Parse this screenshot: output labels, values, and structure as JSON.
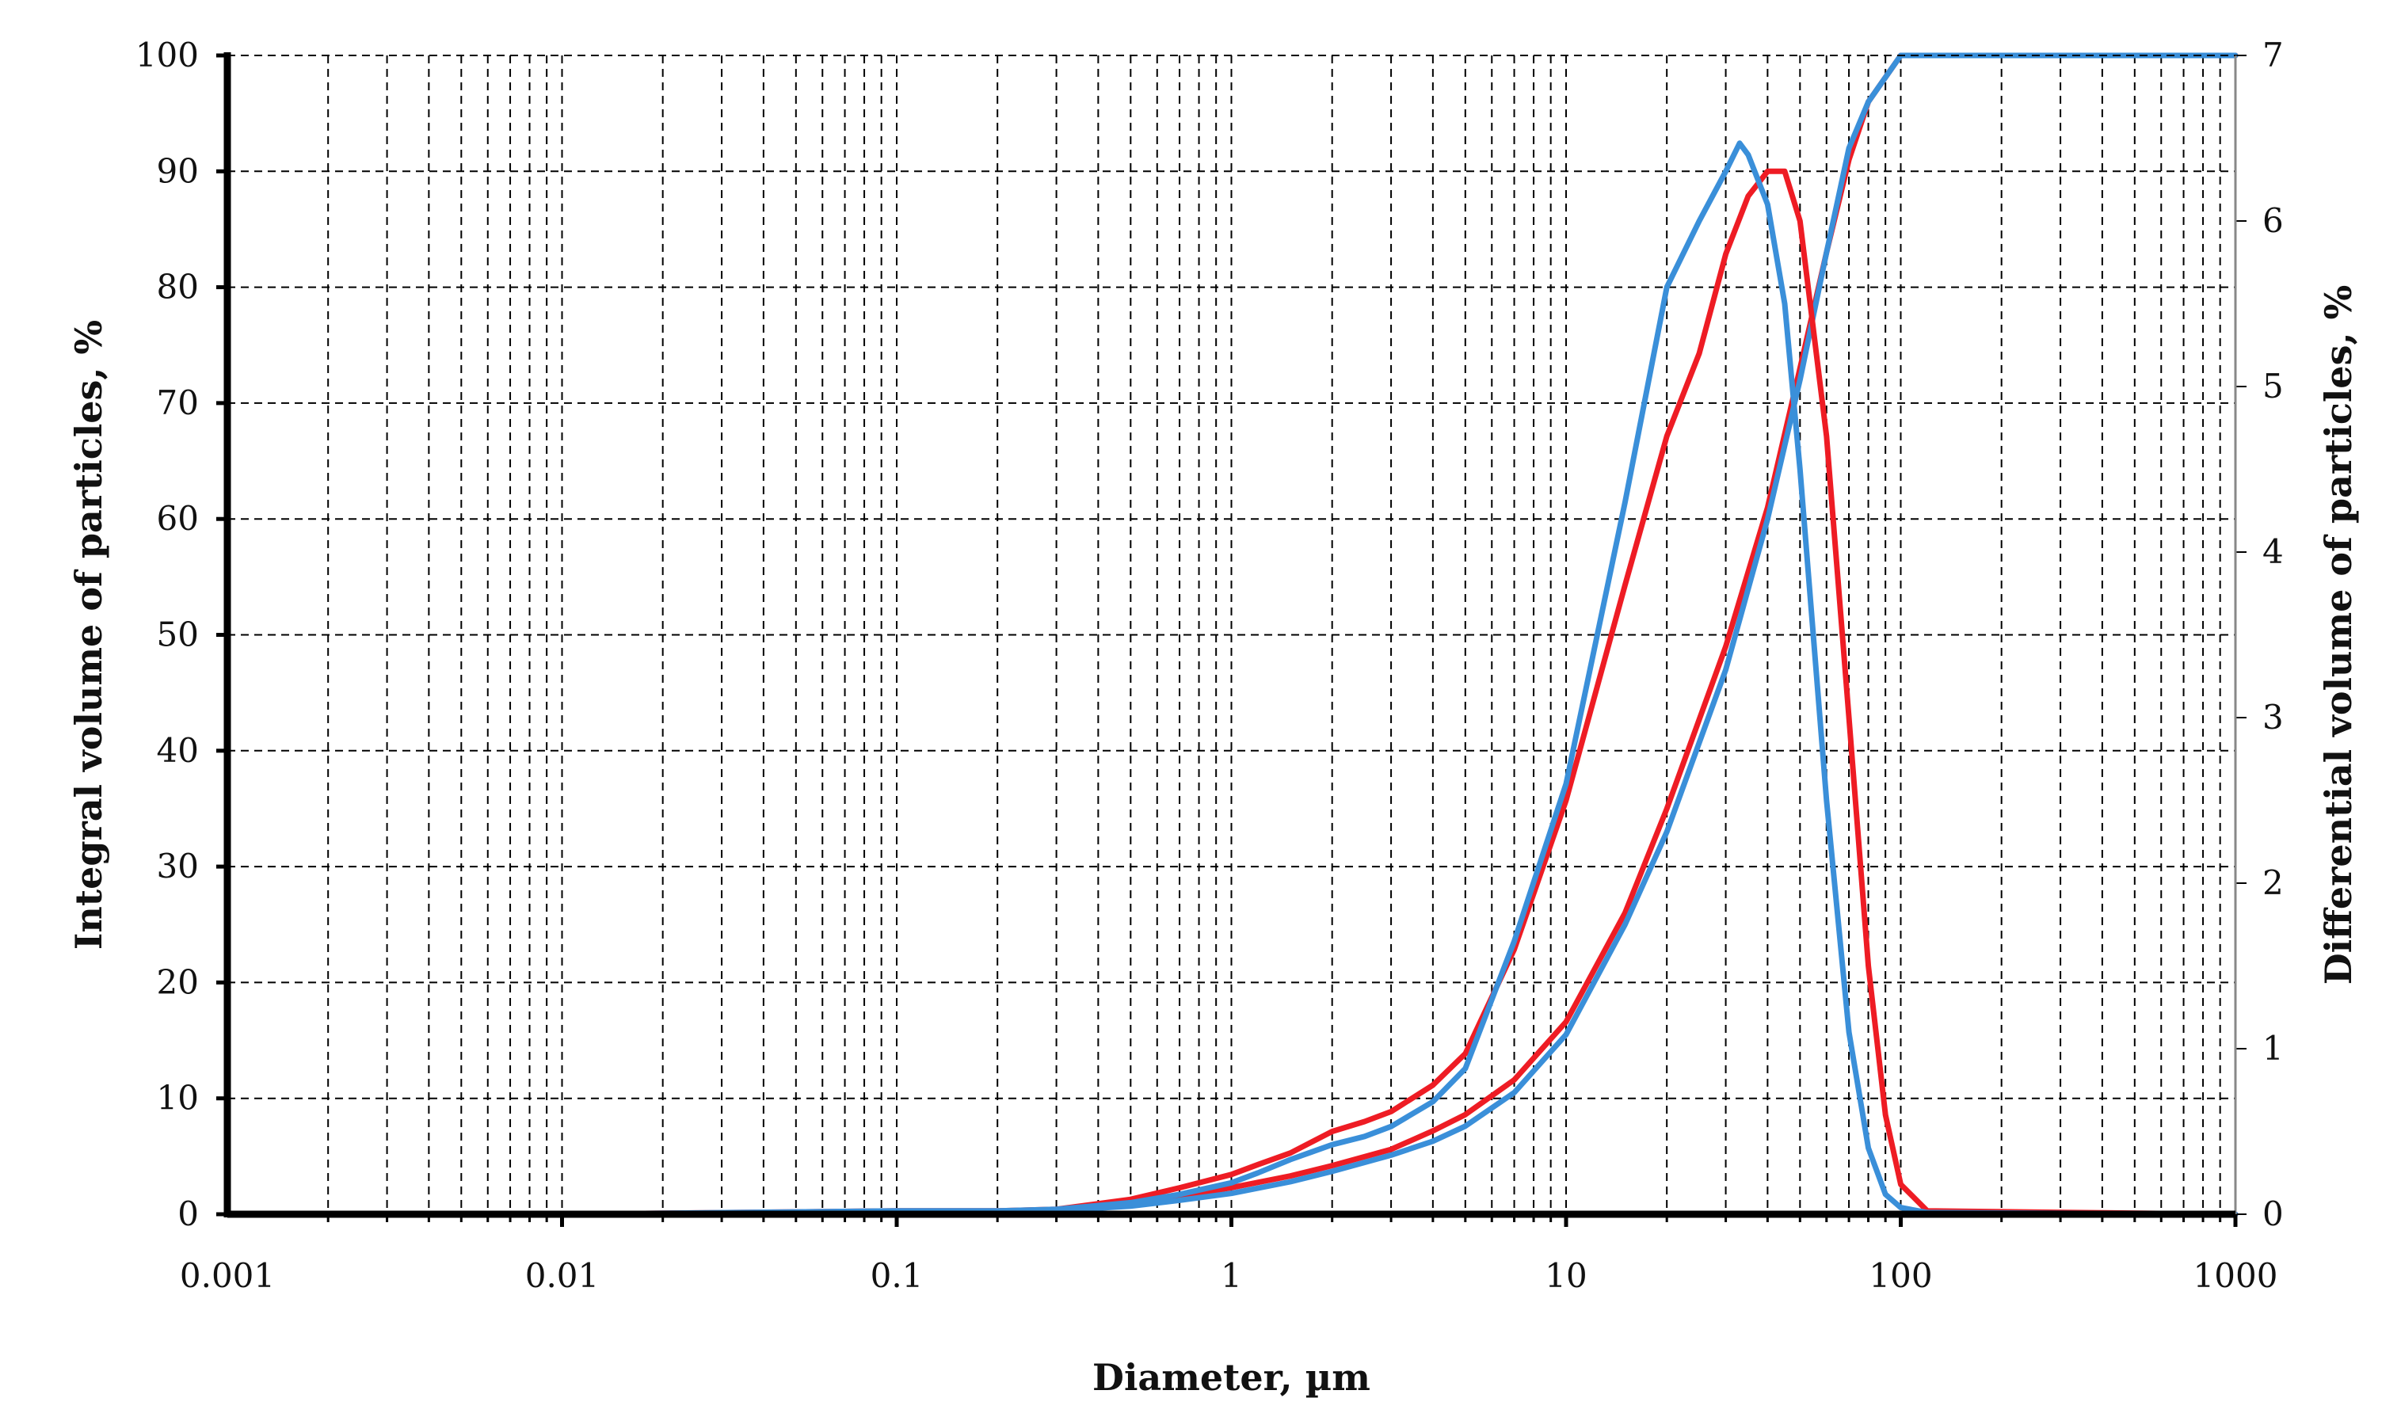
{
  "chart_data": {
    "type": "line",
    "title": "",
    "xlabel": "Diameter, µm",
    "ylabel_left": "Integral volume of particles, %",
    "ylabel_right": "Differential volume of particles, %",
    "x_scale": "log",
    "xlim": [
      0.001,
      1000
    ],
    "ylim_left": [
      0,
      100
    ],
    "ylim_right": [
      0,
      7
    ],
    "x_ticks": [
      "0.001",
      "0.01",
      "0.1",
      "1",
      "10",
      "100",
      "1000"
    ],
    "y_left_ticks": [
      "0",
      "10",
      "20",
      "30",
      "40",
      "50",
      "60",
      "70",
      "80",
      "90",
      "100"
    ],
    "y_right_ticks": [
      "0",
      "1",
      "2",
      "3",
      "4",
      "5",
      "6",
      "7"
    ],
    "grid": true,
    "legend": "none",
    "colors": {
      "red": "#ee1c24",
      "blue": "#3a8fd9"
    },
    "series": [
      {
        "axis": "left",
        "color": "#ee1c24",
        "x": [
          0.01,
          0.1,
          0.2,
          0.3,
          0.5,
          0.7,
          1,
          1.5,
          2,
          3,
          4,
          5,
          7,
          10,
          15,
          20,
          30,
          40,
          50,
          60,
          70,
          80,
          100,
          1000
        ],
        "y": [
          0,
          0.1,
          0.2,
          0.4,
          0.9,
          1.5,
          2.3,
          3.3,
          4.2,
          5.6,
          7.2,
          8.6,
          11.6,
          16.6,
          26,
          35,
          49,
          61,
          73,
          83,
          91,
          96,
          100,
          100
        ]
      },
      {
        "axis": "left",
        "color": "#3a8fd9",
        "x": [
          0.01,
          0.1,
          0.2,
          0.3,
          0.5,
          0.7,
          1,
          1.5,
          2,
          3,
          4,
          5,
          7,
          10,
          15,
          20,
          30,
          40,
          50,
          60,
          70,
          80,
          100,
          1000
        ],
        "y": [
          0,
          0.1,
          0.2,
          0.3,
          0.7,
          1.2,
          1.8,
          2.8,
          3.7,
          5.1,
          6.3,
          7.6,
          10.5,
          15.5,
          25,
          33,
          47,
          60,
          72,
          83,
          92,
          96,
          100,
          100
        ]
      },
      {
        "axis": "right",
        "color": "#ee1c24",
        "x": [
          0.01,
          0.1,
          0.2,
          0.3,
          0.5,
          0.7,
          1,
          1.2,
          1.5,
          2,
          2.5,
          3,
          4,
          5,
          7,
          10,
          15,
          20,
          25,
          30,
          35,
          40,
          45,
          50,
          60,
          70,
          80,
          90,
          100,
          120,
          1000
        ],
        "y": [
          0,
          0.02,
          0.02,
          0.03,
          0.09,
          0.16,
          0.24,
          0.3,
          0.37,
          0.5,
          0.56,
          0.62,
          0.78,
          0.97,
          1.6,
          2.5,
          3.8,
          4.7,
          5.2,
          5.8,
          6.15,
          6.3,
          6.3,
          6.0,
          4.7,
          3.0,
          1.5,
          0.6,
          0.18,
          0.02,
          0
        ]
      },
      {
        "axis": "right",
        "color": "#3a8fd9",
        "x": [
          0.01,
          0.1,
          0.2,
          0.3,
          0.5,
          0.7,
          1,
          1.2,
          1.5,
          2,
          2.5,
          3,
          4,
          5,
          7,
          10,
          15,
          20,
          25,
          30,
          33,
          35,
          40,
          45,
          50,
          60,
          70,
          80,
          90,
          100,
          120,
          1000
        ],
        "y": [
          0,
          0.02,
          0.02,
          0.03,
          0.07,
          0.12,
          0.19,
          0.25,
          0.33,
          0.42,
          0.47,
          0.53,
          0.68,
          0.88,
          1.65,
          2.6,
          4.3,
          5.6,
          6.0,
          6.3,
          6.47,
          6.4,
          6.1,
          5.5,
          4.5,
          2.5,
          1.1,
          0.4,
          0.12,
          0.04,
          0.01,
          0
        ]
      }
    ]
  }
}
